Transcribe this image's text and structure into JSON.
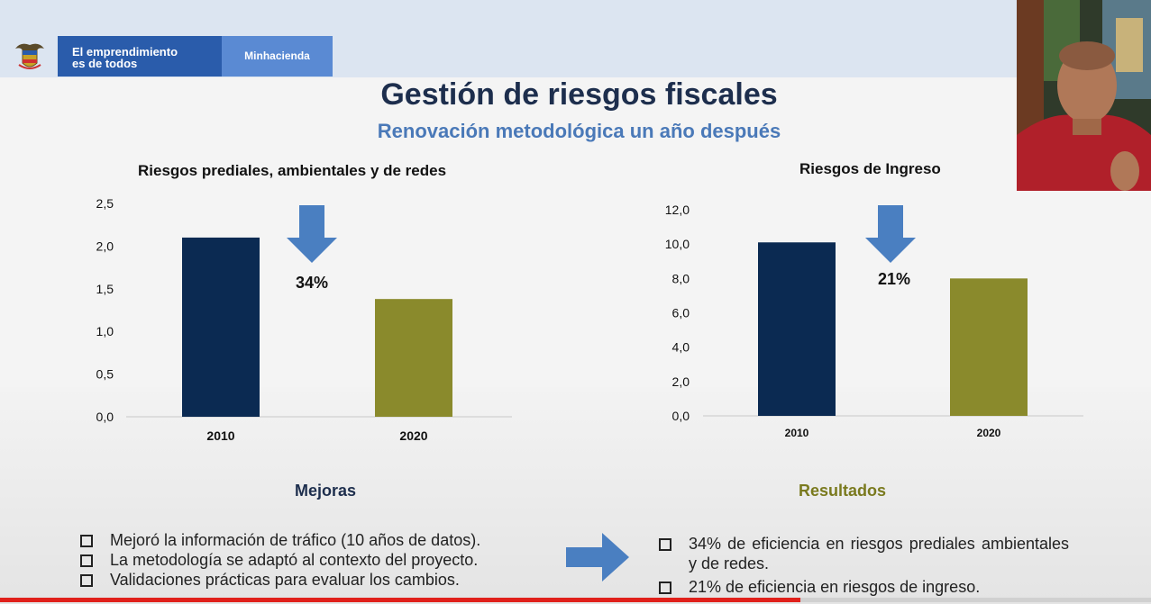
{
  "header": {
    "brand_line1": "El emprendimiento",
    "brand_line2": "es de todos",
    "ministry": "Minhacienda"
  },
  "slide": {
    "title": "Gestión de riesgos fiscales",
    "subtitle": "Renovación metodológica un año después"
  },
  "chart_data": [
    {
      "type": "bar",
      "title": "Riesgos prediales, ambientales y de redes",
      "categories": [
        "2010",
        "2020"
      ],
      "values": [
        2.1,
        1.38
      ],
      "colors": [
        "#0b2a52",
        "#8a8a2c"
      ],
      "ylim": [
        0,
        2.5
      ],
      "yticks": [
        "0,0",
        "0,5",
        "1,0",
        "1,5",
        "2,0",
        "2,5"
      ],
      "annotation": "34%"
    },
    {
      "type": "bar",
      "title": "Riesgos de Ingreso",
      "categories": [
        "2010",
        "2020"
      ],
      "values": [
        10.1,
        8.0
      ],
      "colors": [
        "#0b2a52",
        "#8a8a2c"
      ],
      "ylim": [
        0,
        12
      ],
      "yticks": [
        "0,0",
        "2,0",
        "4,0",
        "6,0",
        "8,0",
        "10,0",
        "12,0"
      ],
      "annotation": "21%"
    }
  ],
  "mejoras": {
    "title": "Mejoras",
    "title_color": "#1d2e4d",
    "items": [
      "Mejoró la información de tráfico (10 años de datos).",
      "La metodología se adaptó al contexto del proyecto.",
      "Validaciones prácticas para evaluar los cambios."
    ]
  },
  "resultados": {
    "title": "Resultados",
    "title_color": "#7a7a1e",
    "items": [
      "34% de eficiencia en riesgos prediales ambientales y de redes.",
      "21% de eficiencia en riesgos de ingreso."
    ]
  },
  "colors": {
    "arrow": "#4a7fc1",
    "header_band": "#dce5f1",
    "brand": "#2a5cab",
    "ministry": "#5a8ad3"
  },
  "icons": {
    "crest": "colombia-coat-of-arms-icon",
    "down_arrow": "arrow-down-icon",
    "right_arrow": "arrow-right-icon",
    "bullet": "checkbox-icon"
  },
  "video": {
    "progress_fraction": 0.695
  }
}
